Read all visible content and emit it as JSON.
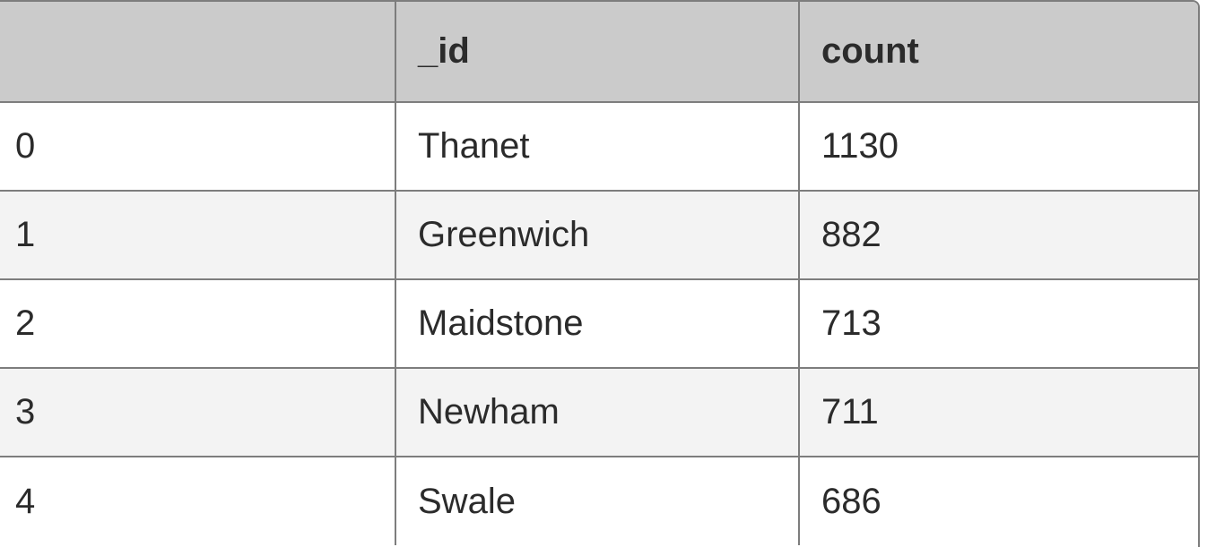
{
  "table": {
    "columns": [
      "",
      "_id",
      "count"
    ],
    "rows": [
      {
        "index": "0",
        "id": "Thanet",
        "count": "1130"
      },
      {
        "index": "1",
        "id": "Greenwich",
        "count": "882"
      },
      {
        "index": "2",
        "id": "Maidstone",
        "count": "713"
      },
      {
        "index": "3",
        "id": "Newham",
        "count": "711"
      },
      {
        "index": "4",
        "id": "Swale",
        "count": "686"
      }
    ]
  },
  "colors": {
    "header_bg": "#cbcbcb",
    "row_alt_bg": "#f3f3f3",
    "border": "#7d7d7d",
    "text": "#2b2b2b"
  }
}
